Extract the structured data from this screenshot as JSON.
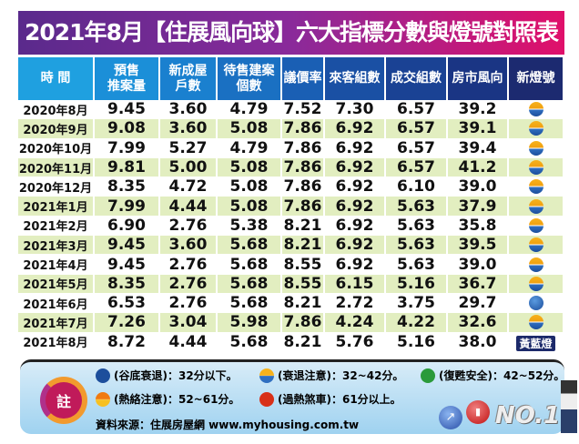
{
  "title": "2021年8月【住展風向球】六大指標分數與燈號對照表",
  "headers": [
    "時 間",
    "預售\n推案量",
    "新成屋\n戶數",
    "待售建案\n個數",
    "議價率",
    "來客組數",
    "成交組數",
    "房市風向",
    "新燈號"
  ],
  "rows": [
    [
      "2020年8月",
      "9.45",
      "3.60",
      "4.79",
      "7.52",
      "7.30",
      "6.57",
      "39.2",
      "yellow-blue"
    ],
    [
      "2020年9月",
      "9.08",
      "3.60",
      "5.08",
      "7.86",
      "6.92",
      "6.57",
      "39.1",
      "yellow-blue"
    ],
    [
      "2020年10月",
      "7.99",
      "5.27",
      "4.79",
      "7.86",
      "6.92",
      "6.57",
      "39.4",
      "yellow-blue"
    ],
    [
      "2020年11月",
      "9.81",
      "5.00",
      "5.08",
      "7.86",
      "6.92",
      "6.57",
      "41.2",
      "yellow-blue"
    ],
    [
      "2020年12月",
      "8.35",
      "4.72",
      "5.08",
      "7.86",
      "6.92",
      "6.10",
      "39.0",
      "yellow-blue"
    ],
    [
      "2021年1月",
      "7.99",
      "4.44",
      "5.08",
      "7.86",
      "6.92",
      "5.63",
      "37.9",
      "yellow-blue"
    ],
    [
      "2021年2月",
      "6.90",
      "2.76",
      "5.38",
      "8.21",
      "6.92",
      "5.63",
      "35.8",
      "yellow-blue"
    ],
    [
      "2021年3月",
      "9.45",
      "3.60",
      "5.68",
      "8.21",
      "6.92",
      "5.63",
      "39.5",
      "yellow-blue"
    ],
    [
      "2021年4月",
      "9.45",
      "2.76",
      "5.68",
      "8.55",
      "6.92",
      "5.63",
      "39.0",
      "yellow-blue"
    ],
    [
      "2021年5月",
      "8.35",
      "2.76",
      "5.68",
      "8.55",
      "6.15",
      "5.16",
      "36.7",
      "yellow-blue"
    ],
    [
      "2021年6月",
      "6.53",
      "2.76",
      "5.68",
      "8.21",
      "2.72",
      "3.75",
      "29.7",
      "blue"
    ],
    [
      "2021年7月",
      "7.26",
      "3.04",
      "5.98",
      "7.86",
      "4.24",
      "4.22",
      "32.6",
      "yellow-blue"
    ],
    [
      "2021年8月",
      "8.72",
      "4.44",
      "5.68",
      "8.21",
      "5.76",
      "5.16",
      "38.0",
      "yellow-blue"
    ]
  ],
  "current_lamp_label": "黃藍燈",
  "note": {
    "badge": "註",
    "legend": [
      {
        "label": "(谷底衰退)：32分以下。",
        "color": "#1c4e9c"
      },
      {
        "label": "(衰退注意)：32~42分。",
        "color": "yellow-blue"
      },
      {
        "label": "(復甦安全)：42~52分。",
        "color": "#2a9a3a"
      },
      {
        "label": "(熱絡注意)：52~61分。",
        "color": "orange-yellow"
      },
      {
        "label": "(過熱煞車)：61分以上。",
        "color": "#d83018"
      }
    ],
    "source": "資料來源：住展房屋網 www.myhousing.com.tw",
    "logo_text": "NO.1"
  },
  "watermark": "www.myhousing.com.tw",
  "header_colors": [
    "#1fa0e0",
    "#1b8fd8",
    "#1a80cf",
    "#1a70c2",
    "#1a5fb4",
    "#1a50a4",
    "#1a4294",
    "#1a3584",
    "#1c2a70"
  ]
}
